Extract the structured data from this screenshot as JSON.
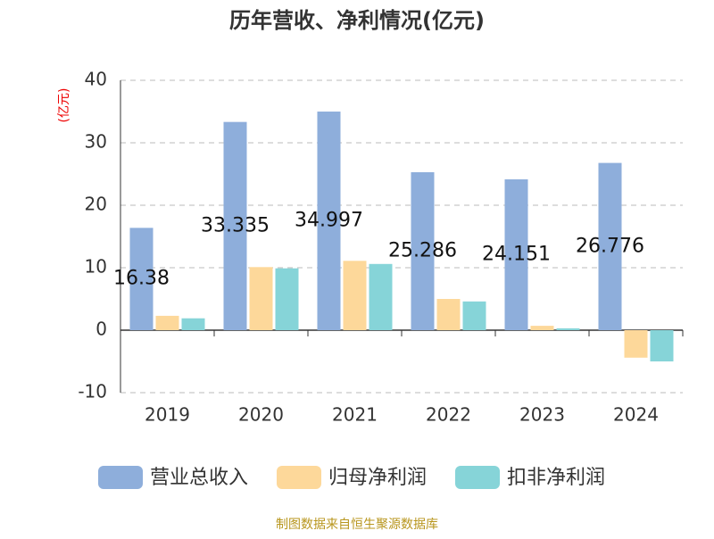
{
  "chart_data": {
    "type": "bar",
    "title": "历年营收、净利情况(亿元)",
    "y_label": "(亿元)",
    "categories": [
      "2019",
      "2020",
      "2021",
      "2022",
      "2023",
      "2024"
    ],
    "series": [
      {
        "name": "营业总收入",
        "color": "#8eaedb",
        "values": [
          16.38,
          33.335,
          34.997,
          25.286,
          24.151,
          26.776
        ]
      },
      {
        "name": "归母净利润",
        "color": "#fdd89a",
        "values": [
          2.3,
          10.1,
          11.1,
          5.0,
          0.7,
          -4.4
        ]
      },
      {
        "name": "扣非净利润",
        "color": "#86d4d8",
        "values": [
          1.9,
          9.9,
          10.6,
          4.6,
          0.3,
          -5.0
        ]
      }
    ],
    "labeled_series": 0,
    "ylim": [
      -10,
      40
    ],
    "yticks": [
      -10,
      0,
      10,
      20,
      30,
      40
    ],
    "grid": true,
    "source": "制图数据来自恒生聚源数据库"
  }
}
